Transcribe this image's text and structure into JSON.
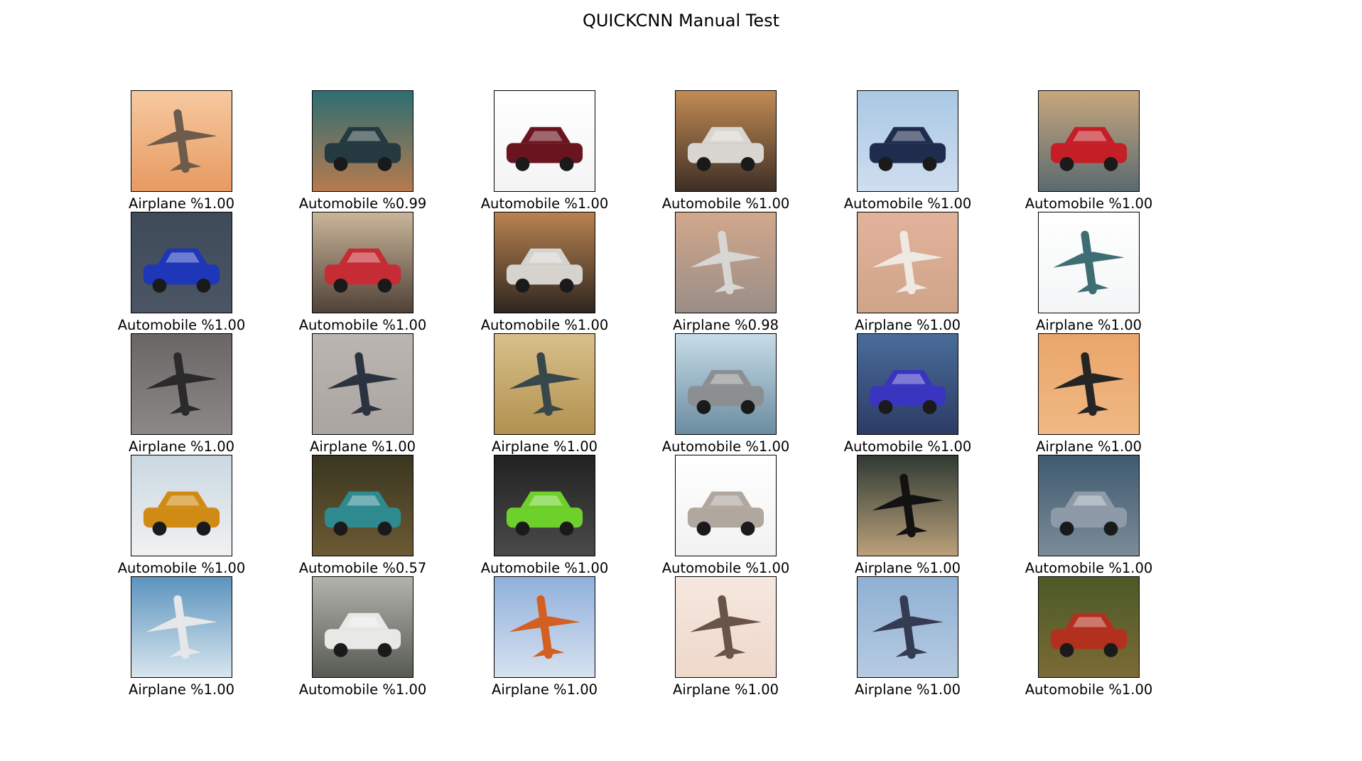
{
  "title": "QUICKCNN Manual Test",
  "grid": {
    "rows": 5,
    "cols": 6,
    "cells": [
      {
        "label": "Airplane %1.00",
        "subject": "airplane",
        "bg": [
          "#f6c9a0",
          "#e89a62"
        ],
        "fg": "#6d5b4c"
      },
      {
        "label": "Automobile %0.99",
        "subject": "car",
        "bg": [
          "#2d6e73",
          "#b77a4e"
        ],
        "fg": "#243a40"
      },
      {
        "label": "Automobile %1.00",
        "subject": "car",
        "bg": [
          "#ffffff",
          "#f4f4f4"
        ],
        "fg": "#6a1420"
      },
      {
        "label": "Automobile %1.00",
        "subject": "car",
        "bg": [
          "#c28b54",
          "#3e2f26"
        ],
        "fg": "#d9d6d2"
      },
      {
        "label": "Automobile %1.00",
        "subject": "car",
        "bg": [
          "#a9c8e4",
          "#cfdef0"
        ],
        "fg": "#1f2c4e"
      },
      {
        "label": "Automobile %1.00",
        "subject": "car",
        "bg": [
          "#c7a77d",
          "#5a6a70"
        ],
        "fg": "#c41f26"
      },
      {
        "label": "Automobile %1.00",
        "subject": "car",
        "bg": [
          "#3f4b5a",
          "#4b5564"
        ],
        "fg": "#1d37b8"
      },
      {
        "label": "Automobile %1.00",
        "subject": "car",
        "bg": [
          "#c9b59a",
          "#504238"
        ],
        "fg": "#c52c34"
      },
      {
        "label": "Automobile %1.00",
        "subject": "car",
        "bg": [
          "#b98350",
          "#2f2620"
        ],
        "fg": "#d6d3cf"
      },
      {
        "label": "Airplane %0.98",
        "subject": "airplane",
        "bg": [
          "#d1a88c",
          "#9a8d87"
        ],
        "fg": "#d8d6d3"
      },
      {
        "label": "Airplane %1.00",
        "subject": "airplane",
        "bg": [
          "#e2b39b",
          "#cfa489"
        ],
        "fg": "#efe9e4"
      },
      {
        "label": "Airplane %1.00",
        "subject": "airplane",
        "bg": [
          "#ffffff",
          "#f3f5f6"
        ],
        "fg": "#3e6d74"
      },
      {
        "label": "Airplane %1.00",
        "subject": "airplane",
        "bg": [
          "#6a6666",
          "#8c8888"
        ],
        "fg": "#2b2a2a"
      },
      {
        "label": "Airplane %1.00",
        "subject": "airplane",
        "bg": [
          "#bcb6b2",
          "#aaa4a1"
        ],
        "fg": "#2c3340"
      },
      {
        "label": "Airplane %1.00",
        "subject": "airplane",
        "bg": [
          "#d8c08a",
          "#b2914f"
        ],
        "fg": "#38484a"
      },
      {
        "label": "Automobile %1.00",
        "subject": "car",
        "bg": [
          "#c7dce8",
          "#6b8ca0"
        ],
        "fg": "#8c8f92"
      },
      {
        "label": "Automobile %1.00",
        "subject": "car",
        "bg": [
          "#4a6c9a",
          "#2c3c64"
        ],
        "fg": "#3a35c0"
      },
      {
        "label": "Airplane %1.00",
        "subject": "airplane",
        "bg": [
          "#e9a66a",
          "#f0b884"
        ],
        "fg": "#262525"
      },
      {
        "label": "Automobile %1.00",
        "subject": "car",
        "bg": [
          "#cad8e2",
          "#f1f1f1"
        ],
        "fg": "#cf8b14"
      },
      {
        "label": "Automobile %0.57",
        "subject": "car",
        "bg": [
          "#3a3620",
          "#6c5a34"
        ],
        "fg": "#2f8a90"
      },
      {
        "label": "Automobile %1.00",
        "subject": "car",
        "bg": [
          "#222222",
          "#4a4a4a"
        ],
        "fg": "#6ed02a"
      },
      {
        "label": "Automobile %1.00",
        "subject": "car",
        "bg": [
          "#ffffff",
          "#f2f2f2"
        ],
        "fg": "#b0a79f"
      },
      {
        "label": "Airplane %1.00",
        "subject": "airplane",
        "bg": [
          "#2f3a33",
          "#bba07a"
        ],
        "fg": "#121212"
      },
      {
        "label": "Automobile %1.00",
        "subject": "car",
        "bg": [
          "#3e5a70",
          "#7b8c98"
        ],
        "fg": "#8e9aa8"
      },
      {
        "label": "Airplane %1.00",
        "subject": "airplane",
        "bg": [
          "#5b94be",
          "#d8e5ee"
        ],
        "fg": "#e5e7ea"
      },
      {
        "label": "Automobile %1.00",
        "subject": "car",
        "bg": [
          "#b3b3ad",
          "#575a52"
        ],
        "fg": "#e8e8e6"
      },
      {
        "label": "Airplane %1.00",
        "subject": "airplane",
        "bg": [
          "#90b0dc",
          "#d6e1ef"
        ],
        "fg": "#d35f22"
      },
      {
        "label": "Airplane %1.00",
        "subject": "airplane",
        "bg": [
          "#f6e8df",
          "#eed8cb"
        ],
        "fg": "#6a5448"
      },
      {
        "label": "Airplane %1.00",
        "subject": "airplane",
        "bg": [
          "#8fb0d3",
          "#b6cbe2"
        ],
        "fg": "#343b52"
      },
      {
        "label": "Automobile %1.00",
        "subject": "car",
        "bg": [
          "#4a5a28",
          "#7c6a36"
        ],
        "fg": "#b3301e"
      }
    ]
  }
}
